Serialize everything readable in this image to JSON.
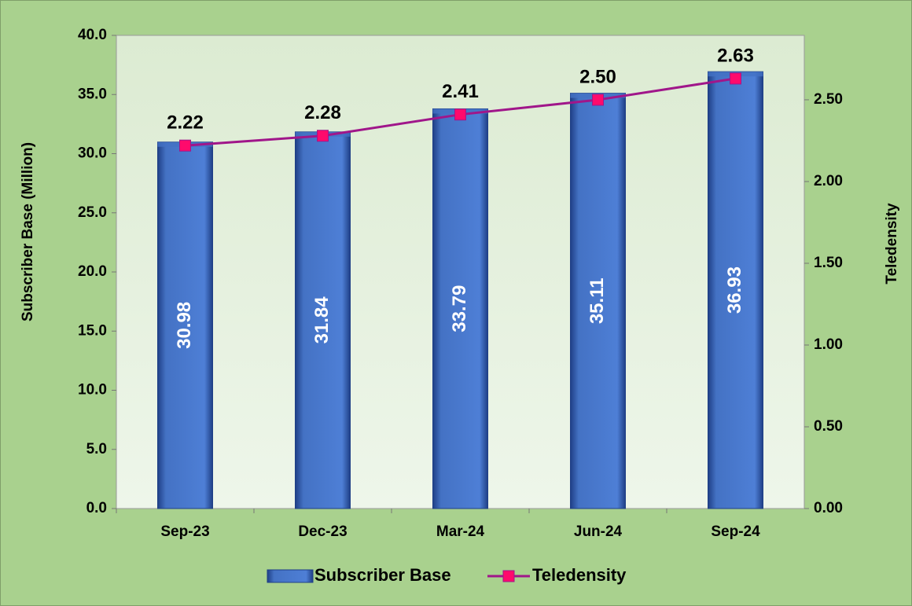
{
  "chart_data": {
    "type": "bar+line",
    "y_label": "Subscriber Base (Million)",
    "y2_label": "Teledensity",
    "categories": [
      "Sep-23",
      "Dec-23",
      "Mar-24",
      "Jun-24",
      "Sep-24"
    ],
    "series": [
      {
        "name": "Subscriber Base",
        "type": "bar",
        "color": "#4472c4",
        "values": [
          30.98,
          31.84,
          33.79,
          35.11,
          36.93
        ]
      },
      {
        "name": "Teledensity",
        "type": "line",
        "axis": "y2",
        "color": "#a0168a",
        "marker_color": "#ff0a6c",
        "values": [
          2.22,
          2.28,
          2.41,
          2.5,
          2.63
        ],
        "value_labels": [
          "2.22",
          "2.28",
          "2.41",
          "2.50",
          "2.63"
        ]
      }
    ],
    "ylim": [
      0,
      40
    ],
    "yticks": [
      {
        "value": 0,
        "label": "0.0"
      },
      {
        "value": 5,
        "label": "5.0"
      },
      {
        "value": 10,
        "label": "10.0"
      },
      {
        "value": 15,
        "label": "15.0"
      },
      {
        "value": 20,
        "label": "20.0"
      },
      {
        "value": 25,
        "label": "25.0"
      },
      {
        "value": 30,
        "label": "30.0"
      },
      {
        "value": 35,
        "label": "35.0"
      },
      {
        "value": 40,
        "label": "40.0"
      }
    ],
    "y2lim": [
      0,
      2.894
    ],
    "y2ticks": [
      {
        "value": 0,
        "label": "0.00"
      },
      {
        "value": 0.5,
        "label": "0.50"
      },
      {
        "value": 1,
        "label": "1.00"
      },
      {
        "value": 1.5,
        "label": "1.50"
      },
      {
        "value": 2,
        "label": "2.00"
      },
      {
        "value": 2.5,
        "label": "2.50"
      }
    ],
    "legend": "bottom"
  }
}
